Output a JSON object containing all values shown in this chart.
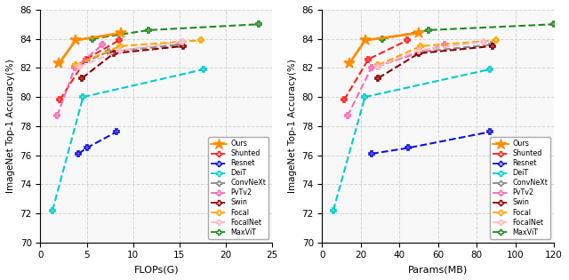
{
  "flops": {
    "Ours": [
      2.0,
      3.8,
      8.7
    ],
    "Shunted": [
      2.1,
      4.9,
      8.5
    ],
    "Resnet": [
      4.1,
      5.0,
      8.2
    ],
    "DeiT": [
      1.3,
      4.6,
      17.6
    ],
    "ConvNeXt": [
      3.7,
      7.3,
      15.0
    ],
    "PvTv2": [
      1.8,
      3.7,
      6.7
    ],
    "Swin": [
      4.5,
      7.9,
      15.4
    ],
    "Focal": [
      3.8,
      8.6,
      17.3
    ],
    "FocalNet": [
      4.2,
      8.6,
      15.3
    ],
    "MaxViT": [
      5.6,
      11.7,
      23.5
    ]
  },
  "flops_acc": {
    "Ours": [
      82.3,
      83.9,
      84.4
    ],
    "Shunted": [
      79.8,
      82.6,
      83.9
    ],
    "Resnet": [
      76.1,
      76.5,
      77.6
    ],
    "DeiT": [
      72.2,
      80.0,
      81.9
    ],
    "ConvNeXt": [
      82.1,
      83.1,
      83.6
    ],
    "PvTv2": [
      78.7,
      82.0,
      83.6
    ],
    "Swin": [
      81.3,
      83.0,
      83.5
    ],
    "Focal": [
      82.2,
      83.5,
      83.9
    ],
    "FocalNet": [
      82.1,
      83.2,
      83.8
    ],
    "MaxViT": [
      84.0,
      84.6,
      85.0
    ]
  },
  "params": {
    "Ours": [
      14.0,
      22.2,
      49.8
    ],
    "Shunted": [
      11.3,
      23.9,
      44.1
    ],
    "Resnet": [
      25.6,
      44.5,
      86.7
    ],
    "DeiT": [
      5.7,
      22.1,
      86.6
    ],
    "ConvNeXt": [
      28.6,
      50.2,
      87.8
    ],
    "PvTv2": [
      13.1,
      25.4,
      63.4
    ],
    "Swin": [
      29.0,
      50.0,
      88.0
    ],
    "Focal": [
      28.9,
      51.1,
      89.8
    ],
    "FocalNet": [
      28.6,
      49.9,
      83.5
    ],
    "MaxViT": [
      31.0,
      55.2,
      120.0
    ]
  },
  "params_acc": {
    "Ours": [
      82.3,
      83.9,
      84.4
    ],
    "Shunted": [
      79.8,
      82.6,
      83.9
    ],
    "Resnet": [
      76.1,
      76.5,
      77.6
    ],
    "DeiT": [
      72.2,
      80.0,
      81.9
    ],
    "ConvNeXt": [
      82.1,
      83.1,
      83.6
    ],
    "PvTv2": [
      78.7,
      82.0,
      83.6
    ],
    "Swin": [
      81.3,
      83.0,
      83.5
    ],
    "Focal": [
      82.2,
      83.5,
      83.9
    ],
    "FocalNet": [
      82.1,
      83.2,
      83.8
    ],
    "MaxViT": [
      84.0,
      84.6,
      85.0
    ]
  },
  "colors": {
    "Ours": "#FF8C00",
    "Shunted": "#FF2020",
    "Resnet": "#1010DD",
    "DeiT": "#00CCCC",
    "ConvNeXt": "#888888",
    "PvTv2": "#FF69B4",
    "Swin": "#8B0000",
    "Focal": "#FFA500",
    "FocalNet": "#FFB6C1",
    "MaxViT": "#228B22"
  },
  "markers": {
    "Ours": "*",
    "Shunted": "P",
    "Resnet": "P",
    "DeiT": "P",
    "ConvNeXt": "P",
    "PvTv2": "P",
    "Swin": "P",
    "Focal": "P",
    "FocalNet": "P",
    "MaxViT": "P"
  },
  "markerfill": {
    "Ours": true,
    "Shunted": false,
    "Resnet": false,
    "DeiT": false,
    "ConvNeXt": false,
    "PvTv2": false,
    "Swin": false,
    "Focal": false,
    "FocalNet": false,
    "MaxViT": false
  },
  "linewidths": {
    "Ours": 2.0,
    "Shunted": 1.5,
    "Resnet": 1.5,
    "DeiT": 1.5,
    "ConvNeXt": 1.5,
    "PvTv2": 1.5,
    "Swin": 1.5,
    "Focal": 1.5,
    "FocalNet": 1.5,
    "MaxViT": 1.5
  },
  "ylim": [
    70,
    86
  ],
  "flops_xlim": [
    0,
    25
  ],
  "params_xlim": [
    0,
    120
  ],
  "ylabel": "ImageNet Top-1 Accuracy(%)",
  "xlabel_flops": "FLOPs(G)",
  "xlabel_params": "Params(MB)",
  "bg_color": "#f8f8f8",
  "grid_color": "#cccccc"
}
